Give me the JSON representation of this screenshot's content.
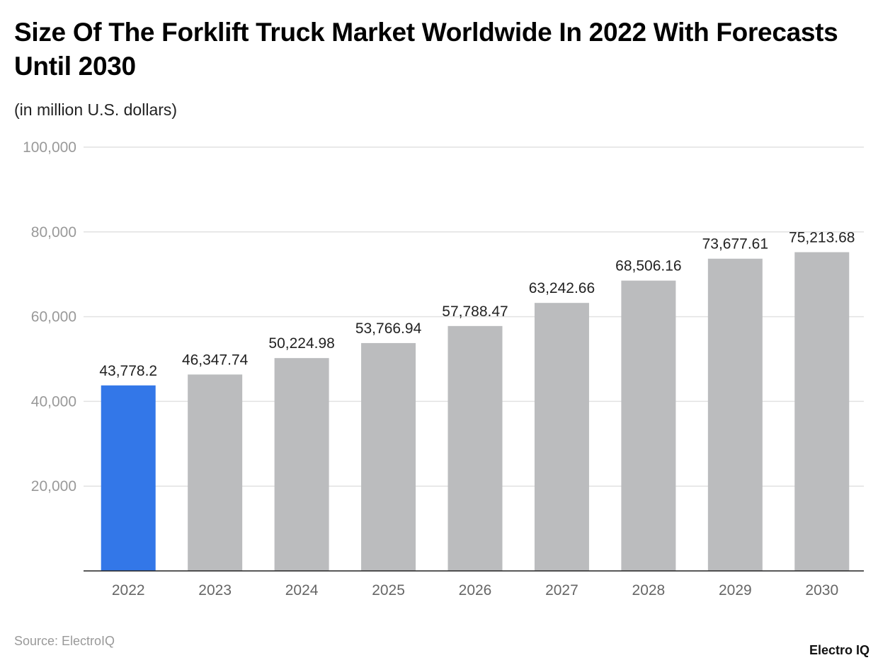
{
  "chart_data": {
    "type": "bar",
    "title": "Size Of The Forklift Truck Market Worldwide In 2022 With Forecasts Until 2030",
    "subtitle": "(in million U.S. dollars)",
    "categories": [
      "2022",
      "2023",
      "2024",
      "2025",
      "2026",
      "2027",
      "2028",
      "2029",
      "2030"
    ],
    "values": [
      43778.2,
      46347.74,
      50224.98,
      53766.94,
      57788.47,
      63242.66,
      68506.16,
      73677.61,
      75213.68
    ],
    "data_labels": [
      "43,778.2",
      "46,347.74",
      "50,224.98",
      "53,766.94",
      "57,788.47",
      "63,242.66",
      "68,506.16",
      "73,677.61",
      "75,213.68"
    ],
    "xlabel": "",
    "ylabel": "",
    "ylim": [
      0,
      100000
    ],
    "yticks": [
      20000,
      40000,
      60000,
      80000,
      100000
    ],
    "ytick_labels": [
      "20,000",
      "40,000",
      "60,000",
      "80,000",
      "100,000"
    ],
    "grid": true,
    "colors": {
      "highlight": "#3377e8",
      "default": "#bbbcbe"
    },
    "highlight_index": 0
  },
  "source": "Source: ElectroIQ",
  "logo": "Electro IQ"
}
